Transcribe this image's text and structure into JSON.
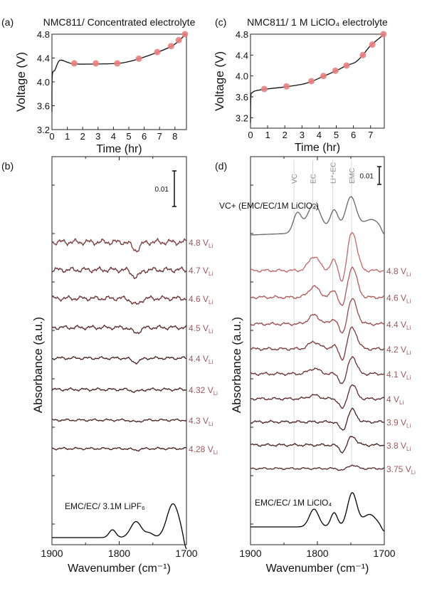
{
  "chart_data": [
    {
      "id": "a",
      "type": "line",
      "panel_label": "(a)",
      "title": "NMC811/ Concentrated electrolyte",
      "xlabel": "Time (hr)",
      "ylabel": "Voltage (V)",
      "xlim": [
        0,
        8.75
      ],
      "ylim": [
        3.2,
        4.8
      ],
      "xticks": [
        0,
        1,
        2,
        3,
        4,
        5,
        6,
        7,
        8
      ],
      "yticks": [
        3.2,
        3.6,
        4.0,
        4.4,
        4.8
      ],
      "ytick_labels": [
        "3.2",
        "3.6",
        "4.0",
        "4.4",
        "4.8"
      ],
      "curve": [
        [
          0,
          3.5
        ],
        [
          0.02,
          4.1
        ],
        [
          0.2,
          4.2
        ],
        [
          0.5,
          4.36
        ],
        [
          1,
          4.33
        ],
        [
          1.5,
          4.3
        ],
        [
          3,
          4.3
        ],
        [
          4.3,
          4.31
        ],
        [
          5,
          4.34
        ],
        [
          5.7,
          4.39
        ],
        [
          6.9,
          4.5
        ],
        [
          7.8,
          4.6
        ],
        [
          8.3,
          4.7
        ],
        [
          8.7,
          4.8
        ]
      ],
      "markers": [
        [
          1.45,
          4.31
        ],
        [
          2.85,
          4.31
        ],
        [
          4.25,
          4.31
        ],
        [
          5.65,
          4.39
        ],
        [
          6.85,
          4.5
        ],
        [
          7.75,
          4.6
        ],
        [
          8.25,
          4.7
        ],
        [
          8.65,
          4.8
        ]
      ],
      "marker_color": "#e88080"
    },
    {
      "id": "c",
      "type": "line",
      "panel_label": "(c)",
      "title": "NMC811/ 1 M LiClO₄ electrolyte",
      "xlabel": "Time (hr)",
      "ylabel": "Voltage (V)",
      "xlim": [
        0,
        7.8
      ],
      "ylim": [
        3.0,
        4.8
      ],
      "xticks": [
        0,
        1,
        2,
        3,
        4,
        5,
        6,
        7
      ],
      "yticks": [
        3.2,
        3.6,
        4.0,
        4.4,
        4.8
      ],
      "ytick_labels": [
        "3.2",
        "3.6",
        "4.0",
        "4.4",
        "4.8"
      ],
      "curve": [
        [
          0,
          3.1
        ],
        [
          0.02,
          3.6
        ],
        [
          0.1,
          3.68
        ],
        [
          0.5,
          3.73
        ],
        [
          2,
          3.79
        ],
        [
          3,
          3.84
        ],
        [
          3.6,
          3.9
        ],
        [
          4.3,
          4.0
        ],
        [
          5,
          4.1
        ],
        [
          5.6,
          4.2
        ],
        [
          6.1,
          4.26
        ],
        [
          6.5,
          4.38
        ],
        [
          7,
          4.58
        ],
        [
          7.8,
          4.8
        ]
      ],
      "markers": [
        [
          0.8,
          3.75
        ],
        [
          2.1,
          3.8
        ],
        [
          3.55,
          3.9
        ],
        [
          4.25,
          4.0
        ],
        [
          4.95,
          4.1
        ],
        [
          5.6,
          4.2
        ],
        [
          6.55,
          4.4
        ],
        [
          7.1,
          4.6
        ],
        [
          7.75,
          4.8
        ]
      ],
      "marker_color": "#e88080"
    },
    {
      "id": "b",
      "type": "line",
      "panel_label": "(b)",
      "xlabel": "Wavenumber (cm⁻¹)",
      "ylabel": "Absorbance (a.u.)",
      "xlim": [
        1900,
        1700
      ],
      "ylim": [
        0,
        0.109
      ],
      "xticks": [
        1900,
        1800,
        1700
      ],
      "xtick_labels": [
        "1900",
        "1800",
        "1700"
      ],
      "scale_bar": {
        "label": "0.01",
        "value": 0.01
      },
      "label_color": "#9a5a5e",
      "reference": {
        "label": "EMC/EC/ 3.1M LiPF₆",
        "offset": 0.002,
        "color": "#000000",
        "peaks": [
          [
            1810,
            5,
            0.0022
          ],
          [
            1775,
            8,
            0.0045
          ],
          [
            1755,
            6,
            0.0012
          ],
          [
            1720,
            9,
            0.0095
          ],
          [
            1700,
            4,
            -0.004
          ]
        ],
        "noise": 0
      },
      "series": [
        {
          "label": "4.28 V",
          "sub": "Li",
          "offset": 0.027,
          "color": "#4a2020",
          "peaks": [
            [
              1775,
              6,
              -0.0004
            ]
          ],
          "noise": 0.0004
        },
        {
          "label": "4.3 V",
          "sub": "Li",
          "offset": 0.035,
          "color": "#4a2020",
          "peaks": [
            [
              1775,
              6,
              -0.0005
            ]
          ],
          "noise": 0.0004
        },
        {
          "label": "4.32 V",
          "sub": "Li",
          "offset": 0.0436,
          "color": "#4a2020",
          "peaks": [
            [
              1775,
              6,
              -0.0006
            ]
          ],
          "noise": 0.0005
        },
        {
          "label": "4.4 V",
          "sub": "Li",
          "offset": 0.0524,
          "color": "#4a2020",
          "peaks": [
            [
              1775,
              6,
              -0.0012
            ]
          ],
          "noise": 0.0005
        },
        {
          "label": "4.5 V",
          "sub": "Li",
          "offset": 0.061,
          "color": "#5a2828",
          "peaks": [
            [
              1775,
              6,
              -0.0015
            ]
          ],
          "noise": 0.0007
        },
        {
          "label": "4.6 V",
          "sub": "Li",
          "offset": 0.0692,
          "color": "#6a3030",
          "peaks": [
            [
              1775,
              6,
              -0.0018
            ]
          ],
          "noise": 0.0008
        },
        {
          "label": "4.7 V",
          "sub": "Li",
          "offset": 0.0772,
          "color": "#6a3030",
          "peaks": [
            [
              1775,
              6,
              -0.002
            ]
          ],
          "noise": 0.0009
        },
        {
          "label": "4.8 V",
          "sub": "Li",
          "offset": 0.085,
          "color": "#7a3838",
          "peaks": [
            [
              1775,
              6,
              -0.0022
            ]
          ],
          "noise": 0.001
        }
      ]
    },
    {
      "id": "d",
      "type": "line",
      "panel_label": "(d)",
      "xlabel": "Wavenumber (cm⁻¹)",
      "ylabel": "Absorbance (a.u.)",
      "xlim": [
        1900,
        1700
      ],
      "ylim": [
        0,
        0.218
      ],
      "xticks": [
        1900,
        1800,
        1700
      ],
      "xtick_labels": [
        "1900",
        "1800",
        "1700"
      ],
      "scale_bar": {
        "label": "0.01",
        "value": 0.01
      },
      "label_color": "#9a5a5e",
      "band_markers": [
        {
          "label": "VC",
          "x": 1835
        },
        {
          "label": "EC",
          "x": 1807
        },
        {
          "label": "Li⁺-EC",
          "x": 1777
        },
        {
          "label": "EMC",
          "x": 1749
        }
      ],
      "vc_reference": {
        "label": "VC+ (EMC/EC/1M LiClO₄)",
        "offset": 0.174,
        "color": "#666666",
        "peaks": [
          [
            1830,
            6,
            0.011
          ],
          [
            1805,
            10,
            0.016
          ],
          [
            1775,
            6,
            0.012
          ],
          [
            1750,
            8,
            0.019
          ],
          [
            1720,
            12,
            0.006
          ],
          [
            1700,
            4,
            -0.004
          ]
        ],
        "slope": 0.003,
        "noise": 0
      },
      "reference": {
        "label": "EMC/EC/ 1M LiClO₄",
        "offset": 0.01,
        "color": "#000000",
        "peaks": [
          [
            1805,
            7,
            0.01
          ],
          [
            1775,
            5,
            0.008
          ],
          [
            1748,
            7,
            0.019
          ],
          [
            1722,
            10,
            0.007
          ],
          [
            1700,
            4,
            -0.003
          ]
        ],
        "noise": 0
      },
      "series": [
        {
          "label": "3.75 V",
          "sub": "Li",
          "offset": 0.0428,
          "color": "#5a2a2a",
          "peaks": [
            [
              1748,
              6,
              0.002
            ],
            [
              1762,
              5,
              -0.001
            ]
          ],
          "noise": 0.0007
        },
        {
          "label": "3.8 V",
          "sub": "Li",
          "offset": 0.056,
          "color": "#4a2020",
          "peaks": [
            [
              1748,
              6,
              0.005
            ],
            [
              1762,
              5,
              -0.004
            ]
          ],
          "noise": 0.0009
        },
        {
          "label": "3.9 V",
          "sub": "Li",
          "offset": 0.069,
          "color": "#4a2020",
          "peaks": [
            [
              1748,
              6,
              0.007
            ],
            [
              1762,
              5,
              -0.005
            ]
          ],
          "noise": 0.0009
        },
        {
          "label": "4 V",
          "sub": "Li",
          "offset": 0.082,
          "color": "#5a2828",
          "peaks": [
            [
              1748,
              6,
              0.008
            ],
            [
              1762,
              5,
              -0.006
            ],
            [
              1805,
              8,
              0.002
            ]
          ],
          "noise": 0.0009
        },
        {
          "label": "4.1 V",
          "sub": "Li",
          "offset": 0.096,
          "color": "#6a3030",
          "peaks": [
            [
              1748,
              6,
              0.01
            ],
            [
              1762,
              5,
              -0.006
            ],
            [
              1805,
              8,
              0.003
            ]
          ],
          "noise": 0.001
        },
        {
          "label": "4.2 V",
          "sub": "Li",
          "offset": 0.11,
          "color": "#7a3838",
          "peaks": [
            [
              1748,
              7,
              0.012
            ],
            [
              1762,
              5,
              -0.007
            ],
            [
              1805,
              8,
              0.004
            ],
            [
              1775,
              5,
              0.002
            ]
          ],
          "noise": 0.001
        },
        {
          "label": "4.4 V",
          "sub": "Li",
          "offset": 0.124,
          "color": "#9a4848",
          "peaks": [
            [
              1748,
              7,
              0.014
            ],
            [
              1762,
              5,
              -0.007
            ],
            [
              1805,
              8,
              0.005
            ],
            [
              1775,
              5,
              0.003
            ]
          ],
          "noise": 0.001
        },
        {
          "label": "4.6 V",
          "sub": "Li",
          "offset": 0.139,
          "color": "#b05858",
          "peaks": [
            [
              1748,
              7,
              0.017
            ],
            [
              1762,
              5,
              -0.007
            ],
            [
              1805,
              8,
              0.006
            ],
            [
              1775,
              5,
              0.004
            ]
          ],
          "noise": 0.001
        },
        {
          "label": "4.8 V",
          "sub": "Li",
          "offset": 0.154,
          "color": "#c06868",
          "peaks": [
            [
              1748,
              7,
              0.022
            ],
            [
              1762,
              5,
              -0.008
            ],
            [
              1805,
              8,
              0.008
            ],
            [
              1775,
              5,
              0.006
            ]
          ],
          "noise": 0.001
        }
      ]
    }
  ]
}
